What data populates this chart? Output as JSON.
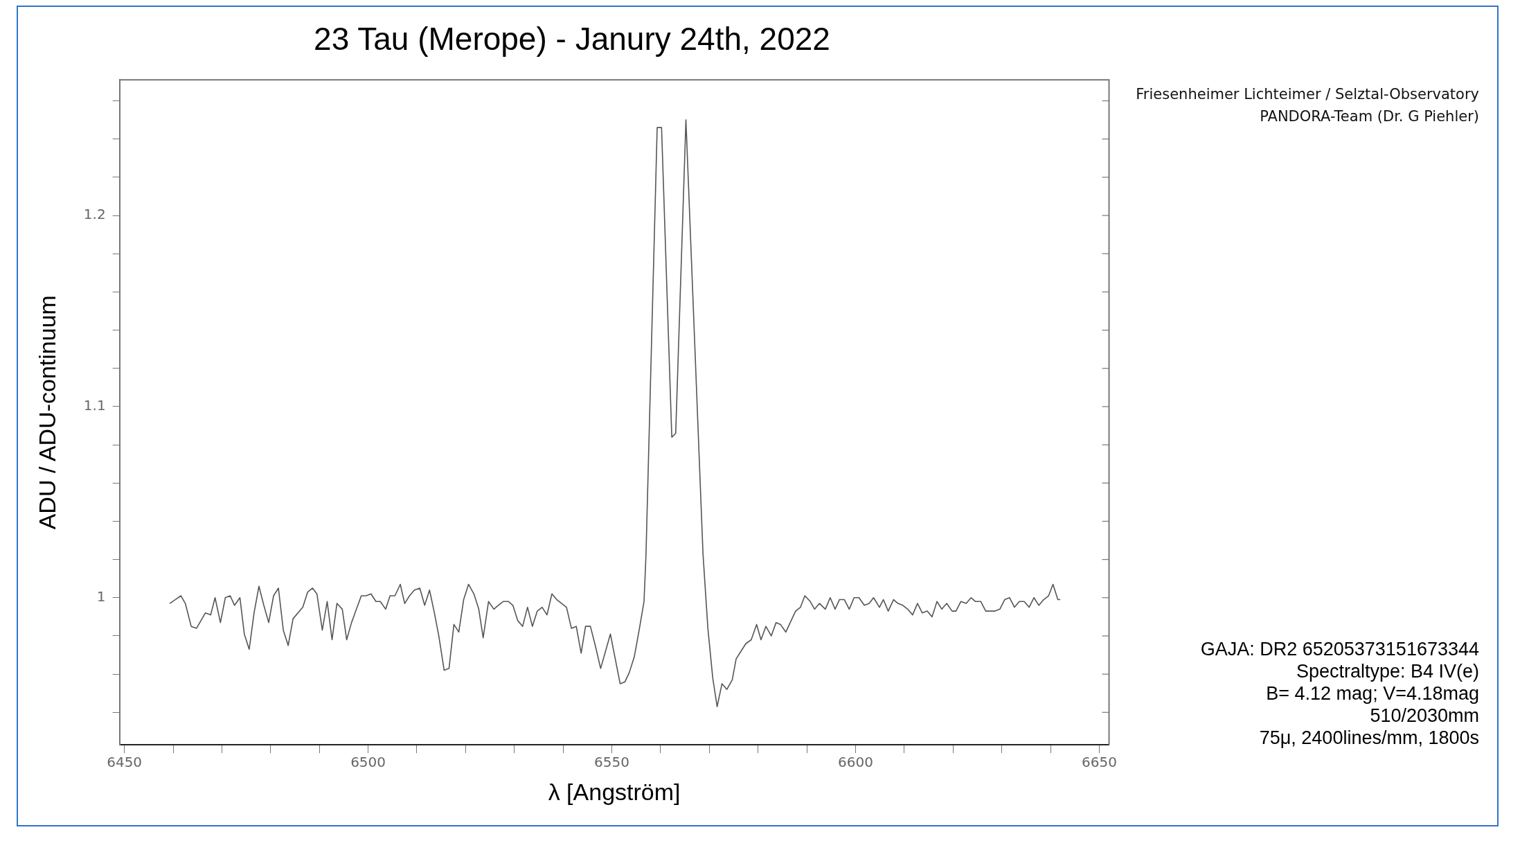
{
  "chart_data": {
    "type": "line",
    "title": "23 Tau (Merope) - Janury 24th, 2022",
    "xlabel": "λ [Angström]",
    "ylabel": "ADU / ADU-continuum",
    "annotations": [
      "Friesenheimer Lichteimer / Selztal-Observatory",
      "PANDORA-Team (Dr. G Piehler)",
      "GAJA: DR2 65205373151673344",
      "Spectraltype: B4 IV(e)",
      "B= 4.12 mag;  V=4.18mag",
      "510/2030mm",
      "75μ, 2400lines/mm, 1800s"
    ],
    "xlim": [
      6449,
      6652
    ],
    "xticks": [
      6450,
      {
        "value": 6460,
        "label": null
      },
      {
        "value": 6470,
        "label": null
      },
      {
        "value": 6480,
        "label": null
      },
      {
        "value": 6490,
        "label": null
      },
      6500,
      {
        "value": 6510,
        "label": null
      },
      {
        "value": 6520,
        "label": null
      },
      {
        "value": 6530,
        "label": null
      },
      {
        "value": 6540,
        "label": null
      },
      6550,
      {
        "value": 6560,
        "label": null
      },
      {
        "value": 6570,
        "label": null
      },
      {
        "value": 6580,
        "label": null
      },
      {
        "value": 6590,
        "label": null
      },
      6600,
      {
        "value": 6610,
        "label": null
      },
      {
        "value": 6620,
        "label": null
      },
      {
        "value": 6630,
        "label": null
      },
      {
        "value": 6640,
        "label": null
      },
      6650
    ],
    "ylim": [
      0.923,
      1.271
    ],
    "yticks": [
      {
        "value": 0.94,
        "label": null
      },
      {
        "value": 0.96,
        "label": null
      },
      {
        "value": 0.98,
        "label": null
      },
      1,
      {
        "value": 1.02,
        "label": null
      },
      {
        "value": 1.04,
        "label": null
      },
      {
        "value": 1.06,
        "label": null
      },
      {
        "value": 1.08,
        "label": null
      },
      1.1,
      {
        "value": 1.12,
        "label": null
      },
      {
        "value": 1.14,
        "label": null
      },
      {
        "value": 1.16,
        "label": null
      },
      {
        "value": 1.18,
        "label": null
      },
      1.2,
      {
        "value": 1.22,
        "label": null
      },
      {
        "value": 1.24,
        "label": null
      },
      {
        "value": 1.26,
        "label": null
      }
    ],
    "grid": false,
    "legend": false,
    "marker": "none",
    "line_style": "solid",
    "series": [
      {
        "color": "#555555",
        "x": [
          6459.3,
          6461.6,
          6462.5,
          6463.7,
          6464.8,
          6466.6,
          6467.7,
          6468.6,
          6469.7,
          6470.7,
          6471.7,
          6472.6,
          6473.7,
          6474.6,
          6475.6,
          6476.6,
          6477.6,
          6478.6,
          6479.6,
          6480.6,
          6481.6,
          6482.6,
          6483.6,
          6484.6,
          6486.6,
          6487.6,
          6488.6,
          6489.5,
          6490.6,
          6491.6,
          6492.6,
          6493.6,
          6494.7,
          6495.6,
          6496.6,
          6497.6,
          6498.6,
          6499.6,
          6500.6,
          6501.6,
          6502.5,
          6503.6,
          6504.5,
          6505.5,
          6506.6,
          6507.5,
          6508.5,
          6509.5,
          6510.6,
          6511.6,
          6512.6,
          6513.6,
          6514.5,
          6515.6,
          6516.6,
          6517.6,
          6518.6,
          6519.6,
          6520.6,
          6521.7,
          6522.7,
          6523.6,
          6524.7,
          6525.8,
          6526.7,
          6527.7,
          6528.8,
          6529.7,
          6530.7,
          6531.7,
          6532.7,
          6533.7,
          6534.7,
          6535.7,
          6536.7,
          6537.7,
          6538.7,
          6539.7,
          6540.7,
          6541.7,
          6542.7,
          6543.7,
          6544.6,
          6545.6,
          6546.6,
          6547.7,
          6548.6,
          6549.7,
          6550.7,
          6551.7,
          6552.7,
          6553.6,
          6554.6,
          6555.6,
          6556.6,
          6557.0,
          6559.3,
          6560.2,
          6562.3,
          6563.1,
          6565.2,
          6568.7,
          6569.7,
          6570.7,
          6571.6,
          6572.6,
          6573.6,
          6574.7,
          6575.5,
          6576.5,
          6577.5,
          6578.6,
          6579.7,
          6580.6,
          6581.6,
          6582.7,
          6583.7,
          6584.6,
          6585.7,
          6586.6,
          6587.7,
          6588.7,
          6589.6,
          6590.7,
          6591.6,
          6592.6,
          6593.8,
          6594.8,
          6595.8,
          6596.7,
          6597.7,
          6598.7,
          6599.7,
          6600.7,
          6601.8,
          6602.8,
          6603.7,
          6604.9,
          6605.7,
          6606.7,
          6607.8,
          6608.7,
          6609.7,
          6610.7,
          6611.7,
          6612.7,
          6613.7,
          6614.7,
          6615.7,
          6616.7,
          6617.7,
          6618.7,
          6619.8,
          6620.6,
          6621.6,
          6622.7,
          6623.7,
          6624.6,
          6625.7,
          6626.7,
          6627.7,
          6628.6,
          6629.6,
          6630.6,
          6631.6,
          6632.6,
          6633.6,
          6634.6,
          6635.6,
          6636.6,
          6637.6,
          6638.6,
          6639.6,
          6640.5,
          6641.5,
          6642.0
        ],
        "values": [
          0.997,
          1.001,
          0.997,
          0.985,
          0.984,
          0.992,
          0.991,
          1.0,
          0.987,
          1.0,
          1.001,
          0.996,
          1.0,
          0.981,
          0.973,
          0.992,
          1.006,
          0.996,
          0.987,
          1.001,
          1.005,
          0.983,
          0.975,
          0.989,
          0.995,
          1.003,
          1.005,
          1.002,
          0.983,
          0.998,
          0.978,
          0.997,
          0.994,
          0.978,
          0.987,
          0.994,
          1.001,
          1.001,
          1.002,
          0.998,
          0.998,
          0.994,
          1.001,
          1.001,
          1.007,
          0.997,
          1.001,
          1.004,
          1.005,
          0.996,
          1.004,
          0.992,
          0.98,
          0.962,
          0.963,
          0.986,
          0.982,
          0.999,
          1.007,
          1.002,
          0.994,
          0.979,
          0.998,
          0.994,
          0.996,
          0.998,
          0.998,
          0.996,
          0.988,
          0.985,
          0.995,
          0.985,
          0.993,
          0.995,
          0.991,
          1.002,
          0.999,
          0.997,
          0.995,
          0.984,
          0.985,
          0.971,
          0.985,
          0.985,
          0.975,
          0.963,
          0.971,
          0.981,
          0.968,
          0.955,
          0.956,
          0.961,
          0.969,
          0.983,
          0.998,
          1.022,
          1.246,
          1.246,
          1.084,
          1.086,
          1.25,
          1.023,
          0.984,
          0.958,
          0.943,
          0.955,
          0.952,
          0.957,
          0.968,
          0.972,
          0.976,
          0.978,
          0.986,
          0.978,
          0.985,
          0.98,
          0.987,
          0.986,
          0.982,
          0.987,
          0.993,
          0.995,
          1.001,
          0.998,
          0.994,
          0.997,
          0.994,
          1.0,
          0.994,
          0.999,
          0.999,
          0.994,
          1.0,
          1.0,
          0.996,
          0.997,
          1.0,
          0.995,
          0.999,
          0.993,
          0.999,
          0.997,
          0.996,
          0.994,
          0.991,
          0.997,
          0.992,
          0.993,
          0.99,
          0.998,
          0.994,
          0.997,
          0.993,
          0.993,
          0.998,
          0.997,
          1.0,
          0.998,
          0.998,
          0.993,
          0.993,
          0.993,
          0.994,
          0.999,
          1.0,
          0.995,
          0.998,
          0.998,
          0.995,
          1.0,
          0.996,
          0.999,
          1.001,
          1.007,
          0.999,
          0.999
        ]
      }
    ]
  }
}
